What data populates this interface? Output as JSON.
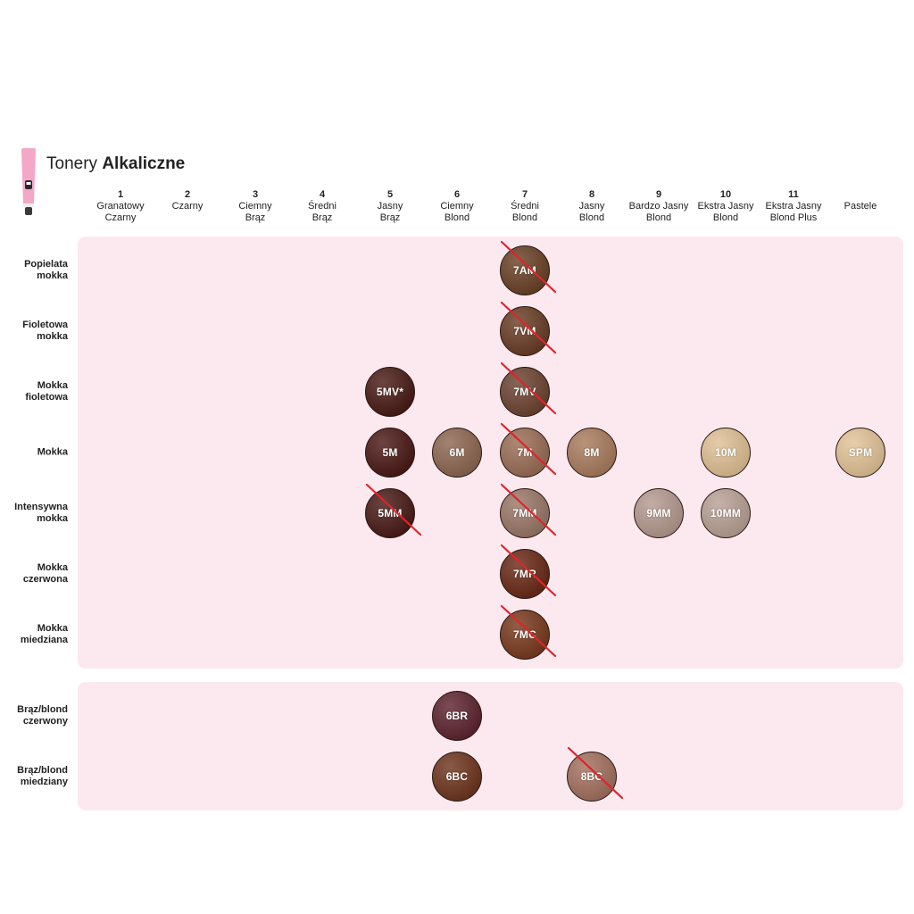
{
  "title": {
    "regular": "Tonery",
    "bold": "Alkaliczne"
  },
  "columns": [
    {
      "num": "1",
      "label": "Granatowy\nCzarny"
    },
    {
      "num": "2",
      "label": "Czarny"
    },
    {
      "num": "3",
      "label": "Ciemny\nBrąz"
    },
    {
      "num": "4",
      "label": "Średni\nBrąz"
    },
    {
      "num": "5",
      "label": "Jasny\nBrąz"
    },
    {
      "num": "6",
      "label": "Ciemny\nBlond"
    },
    {
      "num": "7",
      "label": "Średni\nBlond"
    },
    {
      "num": "8",
      "label": "Jasny\nBlond"
    },
    {
      "num": "9",
      "label": "Bardzo Jasny\nBlond"
    },
    {
      "num": "10",
      "label": "Ekstra Jasny\nBlond"
    },
    {
      "num": "11",
      "label": "Ekstra Jasny\nBlond Plus"
    },
    {
      "num": "",
      "label": "Pastele"
    }
  ],
  "rows": [
    {
      "label": "Popielata\nmokka"
    },
    {
      "label": "Fioletowa\nmokka"
    },
    {
      "label": "Mokka\nfioletowa"
    },
    {
      "label": "Mokka"
    },
    {
      "label": "Intensywna\nmokka"
    },
    {
      "label": "Mokka\nczerwona"
    },
    {
      "label": "Mokka\nmiedziana"
    },
    {
      "label": "Brąz/blond\nczerwony"
    },
    {
      "label": "Brąz/blond\nmiedziany"
    }
  ],
  "swatches": [
    {
      "code": "7AM",
      "row": 0,
      "col": 6,
      "color": "#6b4227",
      "discontinued": true
    },
    {
      "code": "7VM",
      "row": 1,
      "col": 6,
      "color": "#6a3e27",
      "discontinued": true
    },
    {
      "code": "5MV*",
      "row": 2,
      "col": 4,
      "color": "#4a1c16",
      "discontinued": false
    },
    {
      "code": "7MV",
      "row": 2,
      "col": 6,
      "color": "#6d4432",
      "discontinued": true
    },
    {
      "code": "5M",
      "row": 3,
      "col": 4,
      "color": "#4b1a17",
      "discontinued": false
    },
    {
      "code": "6M",
      "row": 3,
      "col": 5,
      "color": "#8e6752",
      "discontinued": false
    },
    {
      "code": "7M",
      "row": 3,
      "col": 6,
      "color": "#9a6e56",
      "discontinued": true
    },
    {
      "code": "8M",
      "row": 3,
      "col": 7,
      "color": "#a97c5e",
      "discontinued": false
    },
    {
      "code": "10M",
      "row": 3,
      "col": 9,
      "color": "#dfc094",
      "discontinued": false
    },
    {
      "code": "SPM",
      "row": 3,
      "col": 11,
      "color": "#e2c397",
      "discontinued": false
    },
    {
      "code": "5MM",
      "row": 4,
      "col": 4,
      "color": "#4a1b17",
      "discontinued": true
    },
    {
      "code": "7MM",
      "row": 4,
      "col": 6,
      "color": "#9a7868",
      "discontinued": true
    },
    {
      "code": "9MM",
      "row": 4,
      "col": 8,
      "color": "#b59a8f",
      "discontinued": false
    },
    {
      "code": "10MM",
      "row": 4,
      "col": 9,
      "color": "#b9a195",
      "discontinued": false
    },
    {
      "code": "7MR",
      "row": 5,
      "col": 6,
      "color": "#6a2a18",
      "discontinued": true
    },
    {
      "code": "7MC",
      "row": 6,
      "col": 6,
      "color": "#7a3a1e",
      "discontinued": true
    },
    {
      "code": "6BR",
      "row": 7,
      "col": 5,
      "color": "#5e2530",
      "discontinued": false
    },
    {
      "code": "6BC",
      "row": 8,
      "col": 5,
      "color": "#6e361f",
      "discontinued": false
    },
    {
      "code": "8BC",
      "row": 8,
      "col": 7,
      "color": "#a47160",
      "discontinued": true
    }
  ],
  "colors": {
    "panel": "#fce9f0",
    "strike": "#e0232a",
    "tube": "#f5a7c8"
  }
}
